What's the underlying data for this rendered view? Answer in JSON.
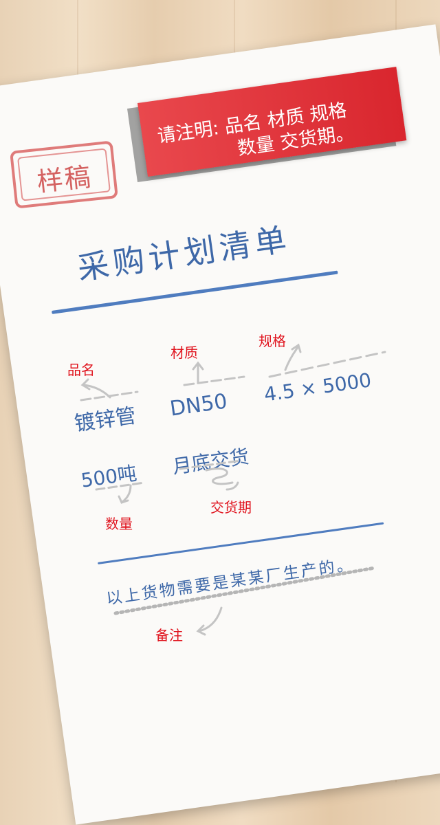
{
  "banner": {
    "line1": "请注明: 品名  材质  规格",
    "line2": "数量  交货期。"
  },
  "stamp": {
    "text": "样稿"
  },
  "title": "采购计划清单",
  "fields": {
    "product_name": {
      "label": "品名",
      "value": "镀锌管"
    },
    "material": {
      "label": "材质",
      "value": "DN50"
    },
    "spec": {
      "label": "规格",
      "value": "4.5 × 5000"
    },
    "quantity": {
      "label": "数量",
      "value": "500吨"
    },
    "delivery": {
      "label": "交货期",
      "value": "月底交货"
    },
    "note": {
      "label": "备注",
      "value": "以上货物需要是某某厂生产的。"
    }
  },
  "colors": {
    "banner_red": "#d9262e",
    "ink_blue": "#3e68a8",
    "label_red": "#e0141e"
  }
}
